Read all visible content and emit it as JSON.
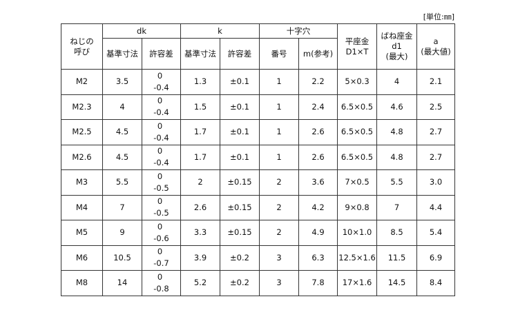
{
  "unit_label": "[単位:㎜]",
  "headers": {
    "nominal": "ねじの\n呼び",
    "dk": "dk",
    "k": "k",
    "cross": "十字穴",
    "washer": "平座金\nD1×T",
    "spring": "ばね座金\nd1\n(最大)",
    "a": "a\n(最大値)",
    "base": "基準寸法",
    "tol": "許容差",
    "num": "番号",
    "m": "m(参考)"
  },
  "rows": [
    [
      "M2",
      "3.5",
      "0",
      "-0.4",
      "1.3",
      "±0.1",
      "1",
      "2.2",
      "5×0.3",
      "4",
      "2.1"
    ],
    [
      "M2.3",
      "4",
      "0",
      "-0.4",
      "1.5",
      "±0.1",
      "1",
      "2.4",
      "6.5×0.5",
      "4.6",
      "2.5"
    ],
    [
      "M2.5",
      "4.5",
      "0",
      "-0.4",
      "1.7",
      "±0.1",
      "1",
      "2.6",
      "6.5×0.5",
      "4.8",
      "2.7"
    ],
    [
      "M2.6",
      "4.5",
      "0",
      "-0.4",
      "1.7",
      "±0.1",
      "1",
      "2.6",
      "6.5×0.5",
      "4.8",
      "2.7"
    ],
    [
      "M3",
      "5.5",
      "0",
      "-0.5",
      "2",
      "±0.15",
      "2",
      "3.6",
      "7×0.5",
      "5.5",
      "3.0"
    ],
    [
      "M4",
      "7",
      "0",
      "-0.5",
      "2.6",
      "±0.15",
      "2",
      "4.2",
      "9×0.8",
      "7",
      "4.4"
    ],
    [
      "M5",
      "9",
      "0",
      "-0.6",
      "3.3",
      "±0.15",
      "2",
      "4.9",
      "10×1.0",
      "8.5",
      "5.4"
    ],
    [
      "M6",
      "10.5",
      "0",
      "-0.7",
      "3.9",
      "±0.2",
      "3",
      "6.3",
      "12.5×1.6",
      "11.5",
      "6.9"
    ],
    [
      "M8",
      "14",
      "0",
      "-0.8",
      "5.2",
      "±0.2",
      "3",
      "7.8",
      "17×1.6",
      "14.5",
      "8.4"
    ]
  ]
}
